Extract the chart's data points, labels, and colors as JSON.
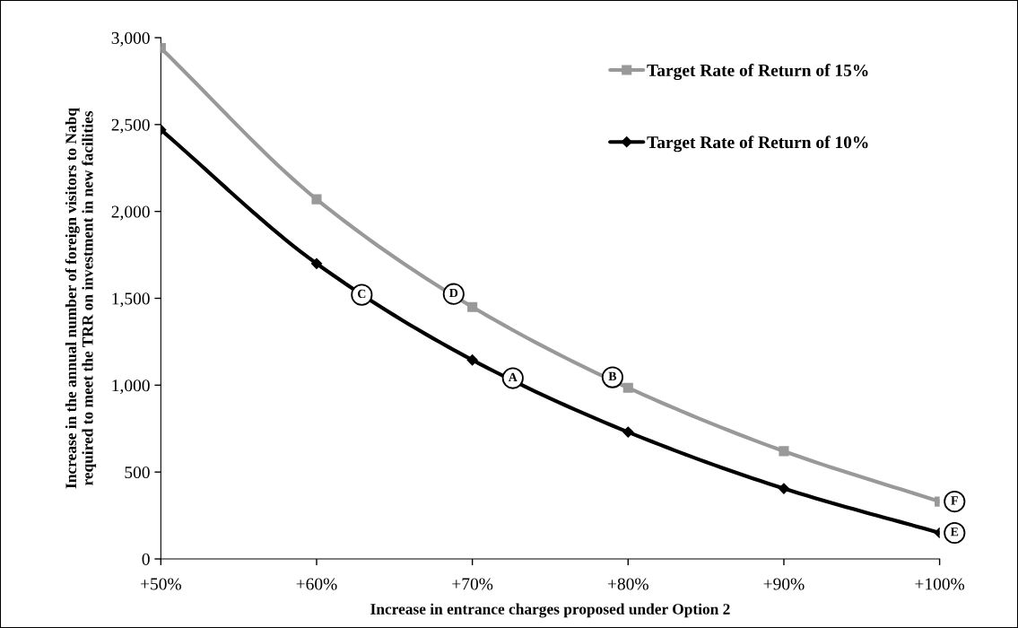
{
  "chart_data": {
    "type": "line",
    "xlabel": "Increase in entrance charges proposed under Option 2",
    "ylabel": "Increase in the annual number of foreign visitors to Nabq\nrequired to meet the TRR on investment in new facilities",
    "x": [
      50,
      60,
      70,
      80,
      90,
      100
    ],
    "xlim": [
      50,
      100
    ],
    "xticks": [
      {
        "value": 50,
        "label": "+50%"
      },
      {
        "value": 60,
        "label": "+60%"
      },
      {
        "value": 70,
        "label": "+70%"
      },
      {
        "value": 80,
        "label": "+80%"
      },
      {
        "value": 90,
        "label": "+90%"
      },
      {
        "value": 100,
        "label": "+100%"
      }
    ],
    "ylim": [
      0,
      3000
    ],
    "yticks": [
      {
        "value": 0,
        "label": "0"
      },
      {
        "value": 500,
        "label": "500"
      },
      {
        "value": 1000,
        "label": "1,000"
      },
      {
        "value": 1500,
        "label": "1,500"
      },
      {
        "value": 2000,
        "label": "2,000"
      },
      {
        "value": 2500,
        "label": "2,500"
      },
      {
        "value": 3000,
        "label": "3,000"
      }
    ],
    "series": [
      {
        "name": "Target Rate of Return of 15%",
        "color": "#999999",
        "marker": "square",
        "values": [
          2940,
          2070,
          1450,
          985,
          620,
          330
        ]
      },
      {
        "name": "Target Rate of Return of 10%",
        "color": "#000000",
        "marker": "diamond",
        "values": [
          2470,
          1700,
          1145,
          730,
          405,
          150
        ]
      }
    ],
    "annotations": [
      {
        "text": "A",
        "x": 72.6,
        "y": 1040
      },
      {
        "text": "B",
        "x": 79.0,
        "y": 1045
      },
      {
        "text": "C",
        "x": 62.9,
        "y": 1520
      },
      {
        "text": "D",
        "x": 68.8,
        "y": 1525
      },
      {
        "text": "E",
        "x": 100,
        "y": 150
      },
      {
        "text": "F",
        "x": 100,
        "y": 330
      }
    ],
    "grid": false,
    "legend": "top right",
    "line_style": "solid"
  }
}
